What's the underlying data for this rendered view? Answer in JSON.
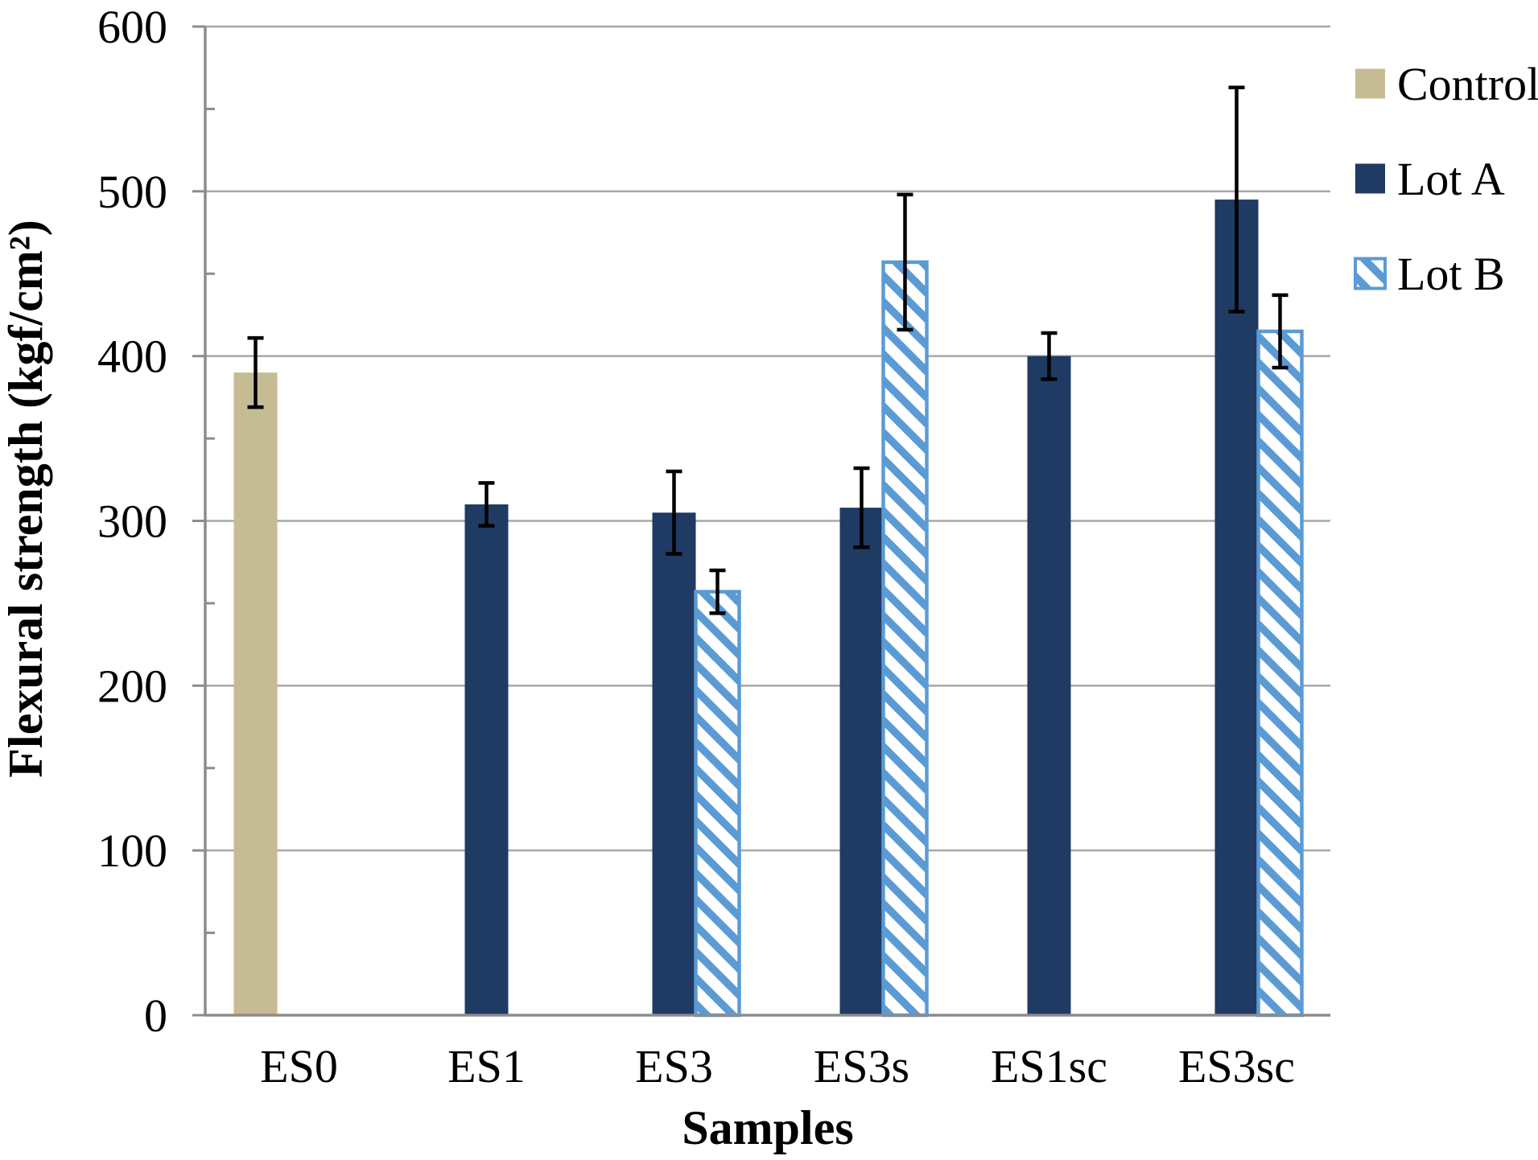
{
  "figure": {
    "background": "#FFFFFF"
  },
  "chart_data": {
    "type": "bar",
    "title": "",
    "xlabel": "Samples",
    "ylabel": "Flexural strength (kgf/cm²)",
    "ylim": [
      0,
      600
    ],
    "yticks": [
      0,
      100,
      200,
      300,
      400,
      500,
      600
    ],
    "minor_tick_step": 50,
    "grid": "horizontal-major",
    "grid_color": "#A7A7A7",
    "axis_color": "#8C8C8C",
    "error_bar_color": "#000000",
    "categories": [
      "ES0",
      "ES1",
      "ES3",
      "ES3s",
      "ES1sc",
      "ES3sc"
    ],
    "series": [
      {
        "name": "Control",
        "color": "#C6BC93",
        "pattern": "solid",
        "values": [
          390,
          null,
          null,
          null,
          null,
          null
        ],
        "errors": [
          21,
          null,
          null,
          null,
          null,
          null
        ]
      },
      {
        "name": "Lot A",
        "color": "#1F3A63",
        "pattern": "solid",
        "values": [
          null,
          310,
          305,
          308,
          400,
          495
        ],
        "errors": [
          null,
          13,
          25,
          24,
          14,
          68
        ]
      },
      {
        "name": "Lot B",
        "color": "#5B9BD5",
        "pattern": "diagonal-hatch",
        "values": [
          null,
          null,
          257,
          457,
          null,
          415
        ],
        "errors": [
          null,
          null,
          13,
          41,
          null,
          22
        ]
      }
    ],
    "legend": {
      "position": "top-right",
      "items": [
        "Control",
        "Lot A",
        "Lot B"
      ]
    }
  }
}
